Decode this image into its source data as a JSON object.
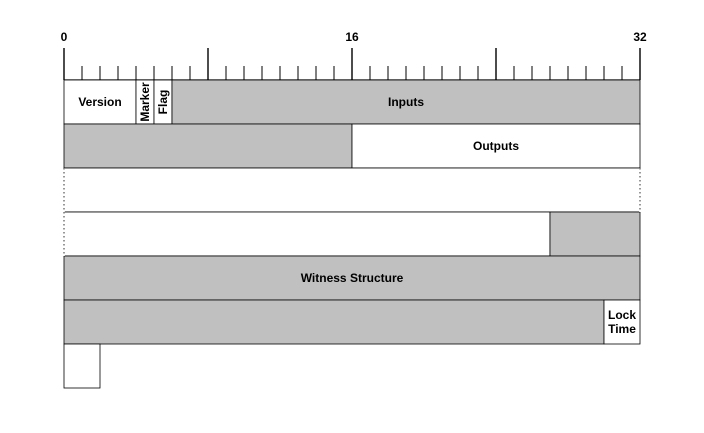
{
  "ruler": {
    "labels": [
      "0",
      "16",
      "32"
    ],
    "total_bits": 32,
    "tick_every_bits": 1,
    "major_tick_every_bits": 8
  },
  "colors": {
    "filled": "#c0c0c0",
    "empty": "#ffffff",
    "line": "#000000"
  },
  "fields": [
    {
      "id": "version",
      "label": "Version",
      "row": 0,
      "start_bit": 0,
      "end_bit": 4,
      "filled": false
    },
    {
      "id": "marker",
      "label": "Marker",
      "row": 0,
      "start_bit": 4,
      "end_bit": 5,
      "filled": false,
      "vertical": true
    },
    {
      "id": "flag",
      "label": "Flag",
      "row": 0,
      "start_bit": 5,
      "end_bit": 6,
      "filled": false,
      "vertical": true
    },
    {
      "id": "inputs",
      "label": "Inputs",
      "row": 0,
      "start_bit": 6,
      "end_bit": 32,
      "filled": true
    },
    {
      "id": "inputs-cont",
      "label": "",
      "row": 1,
      "start_bit": 0,
      "end_bit": 16,
      "filled": true
    },
    {
      "id": "outputs",
      "label": "Outputs",
      "row": 1,
      "start_bit": 16,
      "end_bit": 32,
      "filled": false
    },
    {
      "id": "outputs-cont-a",
      "label": "",
      "row": 2,
      "start_bit": 0,
      "end_bit": 32,
      "filled": false
    },
    {
      "id": "outputs-cont-b",
      "label": "",
      "row": 3,
      "start_bit": 0,
      "end_bit": 27,
      "filled": false
    },
    {
      "id": "witness-start",
      "label": "",
      "row": 3,
      "start_bit": 27,
      "end_bit": 32,
      "filled": true
    },
    {
      "id": "witness",
      "label": "Witness Structure",
      "row": 4,
      "start_bit": 0,
      "end_bit": 32,
      "filled": true
    },
    {
      "id": "witness-end",
      "label": "",
      "row": 5,
      "start_bit": 0,
      "end_bit": 30,
      "filled": true
    },
    {
      "id": "locktime",
      "label": "Lock Time",
      "row": 5,
      "start_bit": 30,
      "end_bit": 32,
      "filled": false,
      "multiline": [
        "Lock",
        "Time"
      ]
    },
    {
      "id": "locktime-end",
      "label": "",
      "row": 6,
      "start_bit": 0,
      "end_bit": 2,
      "filled": false
    }
  ]
}
